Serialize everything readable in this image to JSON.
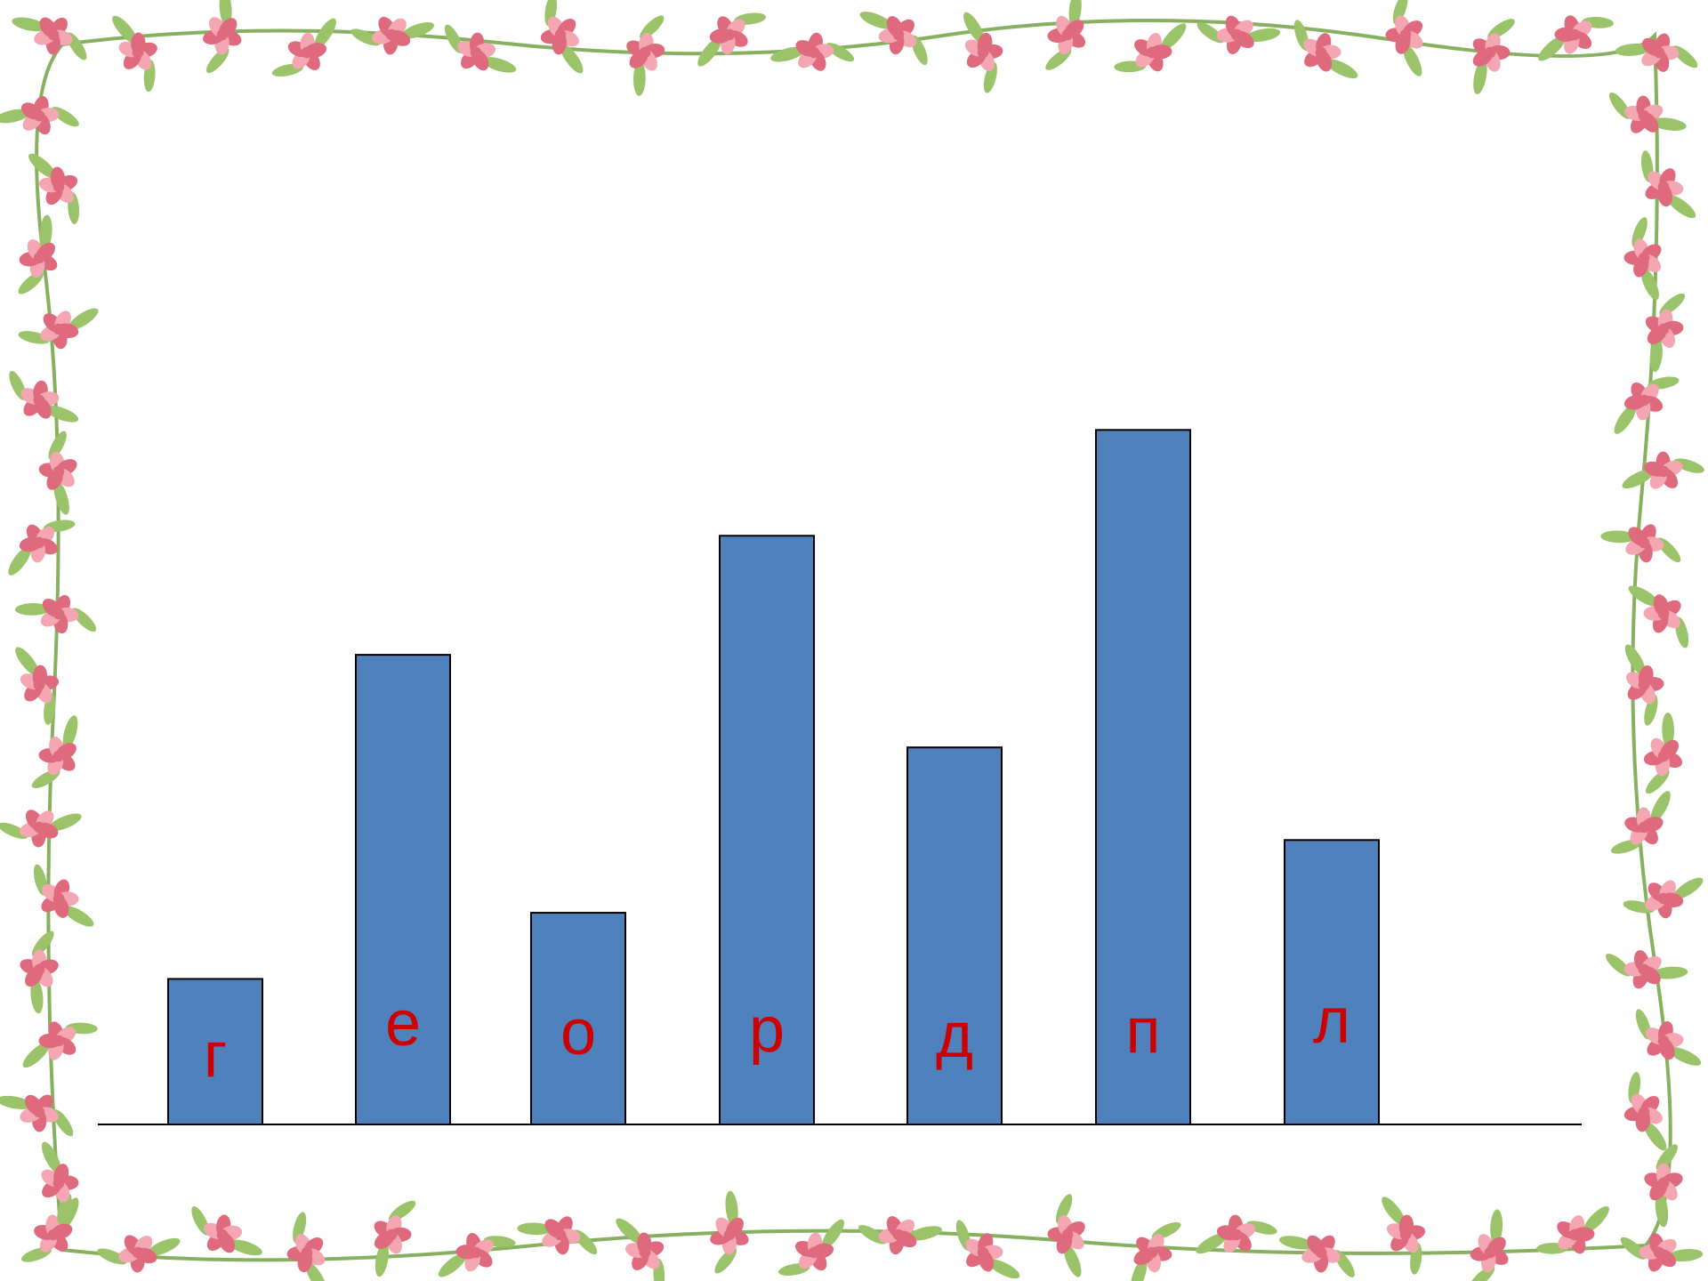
{
  "chart_data": {
    "type": "bar",
    "categories": [
      "г",
      "е",
      "о",
      "р",
      "д",
      "п",
      "л"
    ],
    "values": [
      2.2,
      7.1,
      3.2,
      8.9,
      5.7,
      10.5,
      4.3
    ],
    "ylim": [
      0,
      17
    ],
    "grid": false,
    "legend": "none",
    "colors": {
      "bar": "#4f81bd",
      "bar_border": "#000000",
      "label": "#cc0000",
      "axis": "#000000"
    }
  },
  "decoration": {
    "frame": "floral-border",
    "colors": {
      "petal": "#e06a7d",
      "petal_light": "#f4a6b2",
      "leaf": "#9bc46a",
      "stem": "#7aa84f"
    }
  }
}
